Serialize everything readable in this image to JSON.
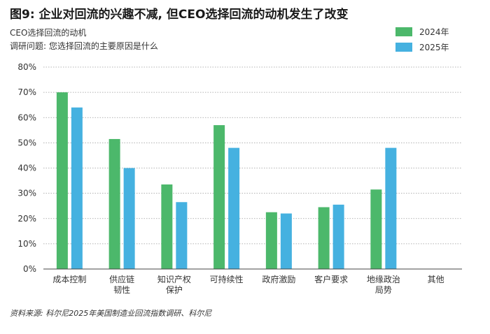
{
  "title": "图9: 企业对回流的兴趣不减, 但CEO选择回流的动机发生了改变",
  "subtitle": "CEO选择回流的动机",
  "question": "调研问题: 您选择回流的主要原因是什么",
  "source": "资料来源: 科尔尼2025年美国制造业回流指数调研、科尔尼",
  "chart_data": {
    "type": "bar",
    "categories": [
      [
        "成本控制"
      ],
      [
        "供应链",
        "韧性"
      ],
      [
        "知识产权",
        "保护"
      ],
      [
        "可持续性"
      ],
      [
        "政府激励"
      ],
      [
        "客户要求"
      ],
      [
        "地缘政治",
        "局势"
      ],
      [
        "其他"
      ]
    ],
    "series": [
      {
        "name": "2024年",
        "color": "#4cb86b",
        "values": [
          70,
          51.5,
          33.5,
          57,
          22.5,
          24.5,
          31.5,
          0
        ]
      },
      {
        "name": "2025年",
        "color": "#45b1e0",
        "values": [
          64,
          40,
          26.5,
          48,
          22,
          25.5,
          48,
          0
        ]
      }
    ],
    "yticks": [
      "0%",
      "10%",
      "20%",
      "30%",
      "40%",
      "50%",
      "60%",
      "70%",
      "80%"
    ],
    "ylim": [
      0,
      80
    ],
    "grid": true,
    "legend_position": "top-right"
  }
}
